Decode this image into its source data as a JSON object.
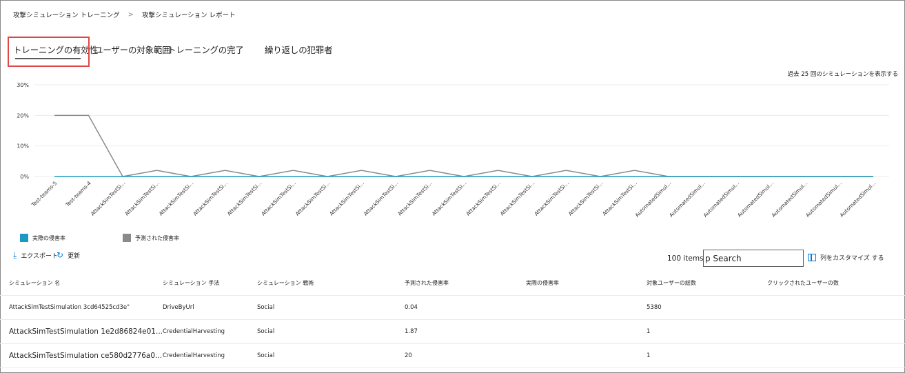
{
  "breadcrumb": {
    "items": [
      "攻撃シミュレーション トレーニング",
      "攻撃シミュレーション レポート"
    ],
    "separator": ">"
  },
  "tabs": [
    {
      "label": "トレーニングの有効性",
      "selected": true
    },
    {
      "label": "ユーザーの対象範囲",
      "selected": false
    },
    {
      "label": "トレーニングの完了",
      "selected": false
    },
    {
      "label": "繰り返しの犯罪者",
      "selected": false
    }
  ],
  "show_last": "過去 25 回のシミュレーションを表示する",
  "chart_data": {
    "type": "line",
    "title": "",
    "yticks": [
      "30%",
      "20%",
      "10%",
      "0%"
    ],
    "ylim": [
      0,
      30
    ],
    "grid": true,
    "categories": [
      "Test-teams-5",
      "Test-teams-4",
      "AttackSimTestSi...",
      "AttackSimTestSi...",
      "AttackSimTestSi...",
      "AttackSimTestSi...",
      "AttackSimTestSi...",
      "AttackSimTestSi...",
      "AttackSimTestSi...",
      "AttackSimTestSi...",
      "AttackSimTestSi...",
      "AttackSimTestSi...",
      "AttackSimTestSi...",
      "AttackSimTestSi...",
      "AttackSimTestSi...",
      "AttackSimTestSi...",
      "AttackSimTestSi...",
      "AttackSimTestSi...",
      "AutomatedSimul...",
      "AutomatedSimul...",
      "AutomatedSimul...",
      "AutomatedSimul...",
      "AutomatedSimul...",
      "AutomatedSimul...",
      "AutomatedSimul..."
    ],
    "series": [
      {
        "name": "実際の侵害率",
        "color": "#1a9ac0",
        "values": [
          0,
          0,
          0,
          0,
          0,
          0,
          0,
          0,
          0,
          0,
          0,
          0,
          0,
          0,
          0,
          0,
          0,
          0,
          0,
          0,
          0,
          0,
          0,
          0,
          0
        ]
      },
      {
        "name": "予測された侵害率",
        "color": "#8a8a8a",
        "values": [
          20,
          20,
          0,
          2,
          0,
          2,
          0,
          2,
          0,
          2,
          0,
          2,
          0,
          2,
          0,
          2,
          0,
          2,
          0,
          0,
          0,
          0,
          0,
          0,
          0
        ]
      }
    ],
    "legend_position": "bottom-left"
  },
  "toolbar": {
    "export_label": "エクスポート",
    "refresh_label": "更新",
    "items_count": "100",
    "items_label": "items",
    "search_value": "p Search",
    "customize_label": "列をカスタマイズ する"
  },
  "table": {
    "columns": [
      "シミュレーション 名",
      "シミュレーション 手法",
      "シミュレーション 戦術",
      "予測された侵害率",
      "実際の侵害率",
      "対象ユーザーの総数",
      "クリックされたユーザーの数"
    ],
    "rows": [
      [
        "AttackSimTestSimulation 3cd64525cd3e\"",
        "DriveByUrl",
        "Social",
        "0.04",
        "",
        "5380",
        ""
      ],
      [
        "AttackSimTestSimulation 1e2d86824e01...",
        "CredentialHarvesting",
        "Social",
        "1.87",
        "",
        "1",
        ""
      ],
      [
        "AttackSimTestSimulation ce580d2776a0...",
        "CredentialHarvesting",
        "Social",
        "20",
        "",
        "1",
        ""
      ]
    ]
  }
}
